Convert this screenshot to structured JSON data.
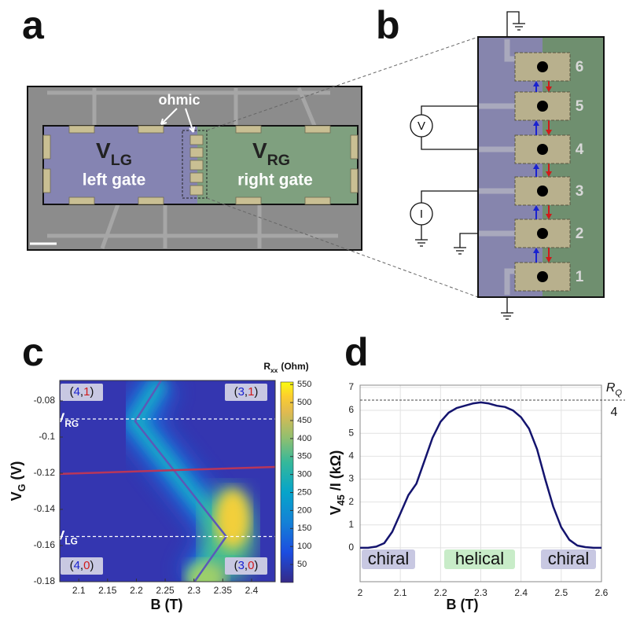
{
  "panels": {
    "a": "a",
    "b": "b",
    "c": "c",
    "d": "d"
  },
  "panel_a": {
    "ohmic": "ohmic",
    "left_gate": {
      "symbol": "V",
      "sub": "LG",
      "label": "left gate"
    },
    "right_gate": {
      "symbol": "V",
      "sub": "RG",
      "label": "right gate"
    }
  },
  "panel_b": {
    "contacts": [
      "1",
      "2",
      "3",
      "4",
      "5",
      "6"
    ],
    "voltmeter": "V",
    "ammeter": "I"
  },
  "chart_data": [
    {
      "type": "heatmap",
      "xlim": [
        2.067,
        2.441
      ],
      "ylim": [
        -0.18,
        -0.0687
      ],
      "xticks": [
        2.1,
        2.15,
        2.2,
        2.25,
        2.3,
        2.35,
        2.4
      ],
      "yticks": [
        -0.08,
        -0.1,
        -0.12,
        -0.14,
        -0.16,
        -0.18
      ],
      "xlabel": "B (T)",
      "ylabel": {
        "main": "V",
        "sub": "G",
        "unit": "(V)"
      },
      "colorbar": {
        "title": {
          "main": "R",
          "sub": "xx",
          "unit": "(Ohm)"
        },
        "lim": [
          0,
          557
        ],
        "ticks": [
          50,
          100,
          150,
          200,
          250,
          300,
          350,
          400,
          450,
          500,
          550
        ]
      },
      "lines": [
        {
          "color": "#5b59b8",
          "x": [
            2.243,
            2.198,
            2.356,
            2.301
          ],
          "y": [
            -0.0687,
            -0.0913,
            -0.155,
            -0.18
          ]
        },
        {
          "color": "#b8365a",
          "x": [
            2.067,
            2.441
          ],
          "y": [
            -0.1204,
            -0.1165
          ]
        }
      ],
      "hlines": [
        {
          "value": -0.09,
          "label": {
            "main": "V",
            "sub": "RG"
          }
        },
        {
          "value": -0.155,
          "label": {
            "main": "V",
            "sub": "LG"
          }
        }
      ],
      "regions": [
        {
          "parts": [
            "(",
            "4",
            ",",
            "1",
            ")"
          ]
        },
        {
          "parts": [
            "(",
            "3",
            ",",
            "1",
            ")"
          ]
        },
        {
          "parts": [
            "(",
            "4",
            ",",
            "0",
            ")"
          ]
        },
        {
          "parts": [
            "(",
            "3",
            ",",
            "0",
            ")"
          ]
        }
      ]
    },
    {
      "type": "line",
      "x": [
        2.0,
        2.02,
        2.04,
        2.06,
        2.08,
        2.1,
        2.12,
        2.14,
        2.16,
        2.18,
        2.2,
        2.22,
        2.24,
        2.26,
        2.28,
        2.3,
        2.32,
        2.34,
        2.36,
        2.38,
        2.4,
        2.42,
        2.44,
        2.46,
        2.48,
        2.5,
        2.52,
        2.54,
        2.56,
        2.58,
        2.6
      ],
      "series": [
        {
          "color": "#14146e",
          "values": [
            0,
            0,
            0.05,
            0.2,
            0.7,
            1.5,
            2.3,
            2.8,
            3.8,
            4.8,
            5.5,
            5.9,
            6.1,
            6.2,
            6.3,
            6.35,
            6.3,
            6.2,
            6.15,
            6.0,
            5.7,
            5.2,
            4.3,
            3.0,
            1.8,
            0.9,
            0.35,
            0.1,
            0.03,
            0,
            0
          ]
        }
      ],
      "xlim": [
        2.0,
        2.6
      ],
      "ylim": [
        -1.48,
        7.1
      ],
      "xticks": [
        2,
        2.1,
        2.2,
        2.3,
        2.4,
        2.5,
        2.6
      ],
      "yticks": [
        0,
        1,
        2,
        3,
        4,
        5,
        6,
        7
      ],
      "grid": true,
      "xlabel": "B (T)",
      "ylabel": {
        "main": "V",
        "sub": "45",
        "rest": "/I (kΩ)"
      },
      "reference": {
        "value": 6.45,
        "label": {
          "main": "R",
          "sub": "Q",
          "den": "4"
        }
      },
      "regions": [
        "chiral",
        "helical",
        "chiral"
      ]
    }
  ]
}
